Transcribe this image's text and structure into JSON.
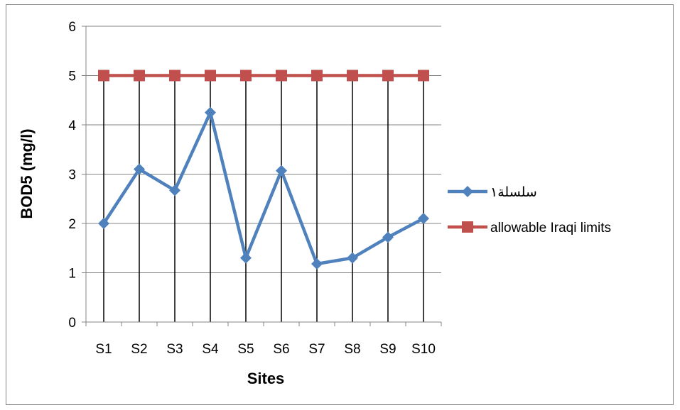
{
  "chart_data": {
    "type": "line",
    "title": "",
    "xlabel": "Sites",
    "ylabel": "BOD5 (mg/l)",
    "categories": [
      "S1",
      "S2",
      "S3",
      "S4",
      "S5",
      "S6",
      "S7",
      "S8",
      "S9",
      "S10"
    ],
    "ylim": [
      0,
      6
    ],
    "yticks": [
      0,
      1,
      2,
      3,
      4,
      5,
      6
    ],
    "grid": "horizontal",
    "legend_position": "right",
    "series": [
      {
        "name": "سلسلة١",
        "color": "#4f81bd",
        "marker": "diamond",
        "values": [
          2.0,
          3.1,
          2.67,
          4.25,
          1.3,
          3.07,
          1.18,
          1.3,
          1.72,
          2.1
        ]
      },
      {
        "name": "allowable Iraqi limits",
        "color": "#c0504d",
        "marker": "square",
        "values": [
          5,
          5,
          5,
          5,
          5,
          5,
          5,
          5,
          5,
          5
        ]
      }
    ]
  }
}
